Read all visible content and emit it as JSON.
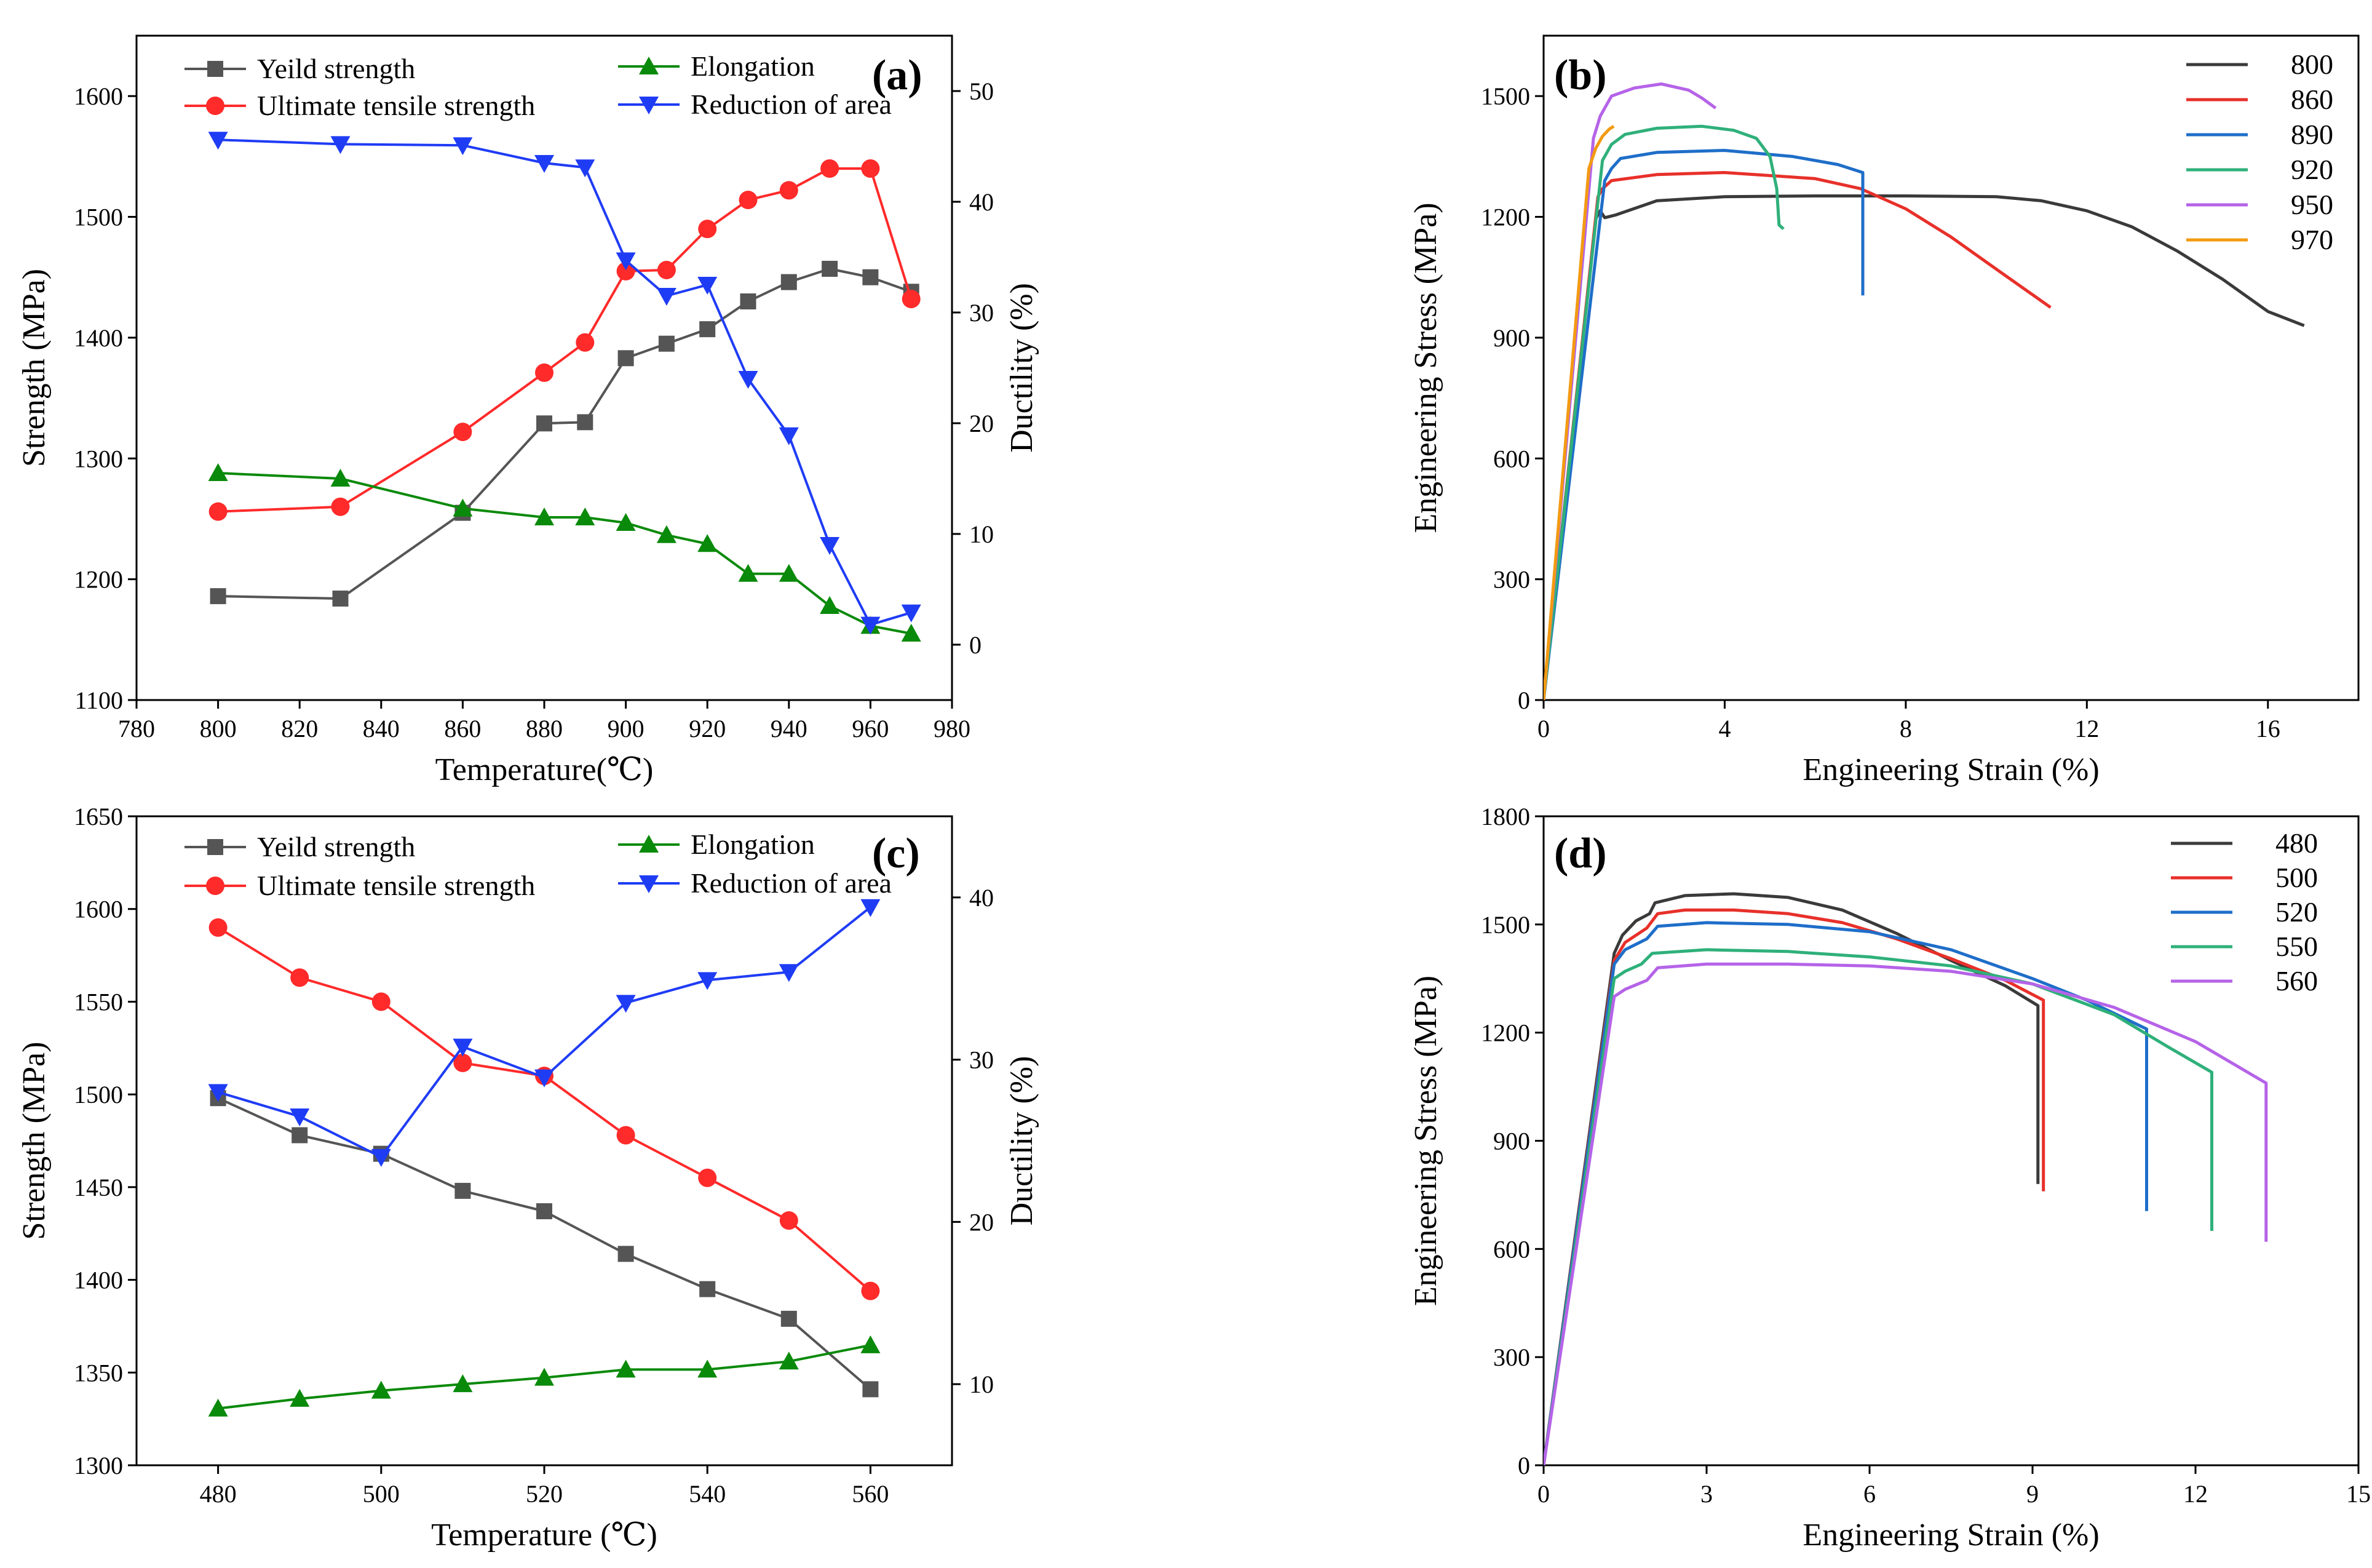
{
  "chart_data": [
    {
      "id": "a",
      "type": "line",
      "panel_label": "(a)",
      "xlabel": "Temperature(℃)",
      "ylabel": "Strength (MPa)",
      "y2label": "Ductility (%)",
      "xlim": [
        780,
        980
      ],
      "xticks": [
        780,
        800,
        820,
        840,
        860,
        880,
        900,
        920,
        940,
        960,
        980
      ],
      "ylim": [
        1100,
        1650
      ],
      "yticks": [
        1100,
        1200,
        1300,
        1400,
        1500,
        1600
      ],
      "y2lim": [
        -5,
        55
      ],
      "y2ticks": [
        0,
        10,
        20,
        30,
        40,
        50
      ],
      "series": [
        {
          "name": "Yeild strength",
          "axis": "left",
          "color": "#555555",
          "marker": "square",
          "x": [
            800,
            830,
            860,
            880,
            890,
            900,
            910,
            920,
            930,
            940,
            950,
            960,
            970
          ],
          "values": [
            1186,
            1184,
            1255,
            1329,
            1330,
            1383,
            1395,
            1407,
            1430,
            1446,
            1457,
            1450,
            1438
          ]
        },
        {
          "name": "Ultimate tensile strength",
          "axis": "left",
          "color": "#ff2a2a",
          "marker": "circle",
          "x": [
            800,
            830,
            860,
            880,
            890,
            900,
            910,
            920,
            930,
            940,
            950,
            960,
            970
          ],
          "values": [
            1256,
            1260,
            1322,
            1371,
            1396,
            1455,
            1456,
            1490,
            1514,
            1522,
            1540,
            1540,
            1432
          ]
        },
        {
          "name": "Elongation",
          "axis": "right",
          "color": "#0a8a0a",
          "marker": "triangle-up",
          "x": [
            800,
            830,
            860,
            880,
            890,
            900,
            910,
            920,
            930,
            940,
            950,
            960,
            970
          ],
          "values": [
            15.5,
            15.0,
            12.3,
            11.5,
            11.5,
            11.0,
            9.9,
            9.1,
            6.4,
            6.4,
            3.5,
            1.7,
            1.0
          ]
        },
        {
          "name": "Reduction of area",
          "axis": "right",
          "color": "#1f3cf5",
          "marker": "triangle-down",
          "x": [
            800,
            830,
            860,
            880,
            890,
            900,
            910,
            920,
            930,
            940,
            950,
            960,
            970
          ],
          "values": [
            45.6,
            45.2,
            45.1,
            43.5,
            43.1,
            34.7,
            31.5,
            32.5,
            24.0,
            18.9,
            9.0,
            1.8,
            2.9
          ]
        }
      ]
    },
    {
      "id": "b",
      "type": "line",
      "panel_label": "(b)",
      "xlabel": "Engineering Strain (%)",
      "ylabel": "Engineering Stress (MPa)",
      "xlim": [
        0,
        18
      ],
      "xticks": [
        0,
        4,
        8,
        12,
        16
      ],
      "ylim": [
        0,
        1650
      ],
      "yticks": [
        0,
        300,
        600,
        900,
        1200,
        1500
      ],
      "series": [
        {
          "name": "800",
          "color": "#3a3a3a",
          "x": [
            0,
            1.15,
            1.25,
            1.35,
            1.6,
            2.5,
            4,
            6,
            8,
            10,
            11,
            12,
            13,
            14,
            15,
            16,
            16.8
          ],
          "values": [
            0,
            1195,
            1215,
            1198,
            1205,
            1240,
            1250,
            1252,
            1252,
            1250,
            1240,
            1215,
            1175,
            1115,
            1045,
            965,
            930
          ]
        },
        {
          "name": "860",
          "color": "#e8302a",
          "x": [
            0,
            1.2,
            1.3,
            1.5,
            2.5,
            4,
            6,
            7,
            8,
            9,
            10,
            11.2
          ],
          "values": [
            0,
            1250,
            1270,
            1290,
            1305,
            1310,
            1295,
            1270,
            1220,
            1150,
            1070,
            975
          ]
        },
        {
          "name": "890",
          "color": "#1f6ec9",
          "x": [
            0,
            1.35,
            1.5,
            1.7,
            2.5,
            4,
            5.5,
            6.5,
            7.05,
            7.05,
            7.05
          ],
          "values": [
            0,
            1290,
            1320,
            1345,
            1360,
            1365,
            1350,
            1330,
            1310,
            1300,
            1005
          ]
        },
        {
          "name": "920",
          "color": "#2fb07a",
          "x": [
            0,
            1.3,
            1.5,
            1.8,
            2.5,
            3.5,
            4.2,
            4.7,
            5.0,
            5.15,
            5.2,
            5.3
          ],
          "values": [
            0,
            1340,
            1380,
            1405,
            1420,
            1425,
            1415,
            1395,
            1350,
            1270,
            1180,
            1170
          ]
        },
        {
          "name": "950",
          "color": "#b563e8",
          "x": [
            0,
            1.1,
            1.25,
            1.5,
            2.0,
            2.6,
            3.2,
            3.5,
            3.8
          ],
          "values": [
            0,
            1395,
            1450,
            1500,
            1520,
            1530,
            1515,
            1495,
            1470
          ]
        },
        {
          "name": "970",
          "color": "#f39a12",
          "x": [
            0,
            1.0,
            1.15,
            1.3,
            1.45,
            1.55
          ],
          "values": [
            0,
            1320,
            1370,
            1400,
            1418,
            1425
          ]
        }
      ]
    },
    {
      "id": "c",
      "type": "line",
      "panel_label": "(c)",
      "xlabel": "Temperature (℃)",
      "ylabel": "Strength (MPa)",
      "y2label": "Ductility (%)",
      "xlim": [
        470,
        570
      ],
      "xticks": [
        480,
        500,
        520,
        540,
        560
      ],
      "ylim": [
        1300,
        1650
      ],
      "yticks": [
        1300,
        1350,
        1400,
        1450,
        1500,
        1550,
        1600,
        1650
      ],
      "y2lim": [
        5,
        45
      ],
      "y2ticks": [
        10,
        20,
        30,
        40
      ],
      "series": [
        {
          "name": "Yeild strength",
          "axis": "left",
          "color": "#555555",
          "marker": "square",
          "x": [
            480,
            490,
            500,
            510,
            520,
            530,
            540,
            550,
            560
          ],
          "values": [
            1498,
            1478,
            1468,
            1448,
            1437,
            1414,
            1395,
            1379,
            1341
          ]
        },
        {
          "name": "Ultimate tensile strength",
          "axis": "left",
          "color": "#ff2a2a",
          "marker": "circle",
          "x": [
            480,
            490,
            500,
            510,
            520,
            530,
            540,
            550,
            560
          ],
          "values": [
            1590,
            1563,
            1550,
            1517,
            1510,
            1478,
            1455,
            1432,
            1394
          ]
        },
        {
          "name": "Elongation",
          "axis": "right",
          "color": "#0a8a0a",
          "marker": "triangle-up",
          "x": [
            480,
            490,
            500,
            510,
            520,
            530,
            540,
            550,
            560
          ],
          "values": [
            8.5,
            9.1,
            9.6,
            10.0,
            10.4,
            10.9,
            10.9,
            11.4,
            12.4
          ]
        },
        {
          "name": "Reduction of area",
          "axis": "right",
          "color": "#1f3cf5",
          "marker": "triangle-down",
          "x": [
            480,
            490,
            500,
            510,
            520,
            530,
            540,
            550,
            560
          ],
          "values": [
            28.0,
            26.5,
            24.0,
            30.8,
            28.9,
            33.5,
            34.9,
            35.4,
            39.4
          ]
        }
      ]
    },
    {
      "id": "d",
      "type": "line",
      "panel_label": "(d)",
      "xlabel": "Engineering Strain (%)",
      "ylabel": "Engineering Stress (MPa)",
      "xlim": [
        0,
        15
      ],
      "xticks": [
        0,
        3,
        6,
        9,
        12,
        15
      ],
      "ylim": [
        0,
        1800
      ],
      "yticks": [
        0,
        300,
        600,
        900,
        1200,
        1500,
        1800
      ],
      "series": [
        {
          "name": "480",
          "color": "#3a3a3a",
          "x": [
            0,
            1.3,
            1.45,
            1.7,
            1.95,
            2.05,
            2.6,
            3.5,
            4.5,
            5.5,
            6.5,
            7.5,
            8.5,
            9.1,
            9.1,
            9.1
          ],
          "values": [
            0,
            1420,
            1470,
            1510,
            1530,
            1560,
            1580,
            1585,
            1575,
            1540,
            1475,
            1400,
            1330,
            1275,
            1250,
            780
          ]
        },
        {
          "name": "500",
          "color": "#e8302a",
          "x": [
            0,
            1.3,
            1.5,
            1.9,
            2.1,
            2.6,
            3.5,
            4.5,
            5.5,
            6.5,
            7.5,
            8.5,
            9.2,
            9.2,
            9.2
          ],
          "values": [
            0,
            1400,
            1450,
            1490,
            1530,
            1540,
            1540,
            1530,
            1505,
            1460,
            1405,
            1345,
            1290,
            1270,
            760
          ]
        },
        {
          "name": "520",
          "color": "#1f6ec9",
          "x": [
            0,
            1.3,
            1.5,
            1.9,
            2.1,
            3.0,
            4.5,
            6.0,
            7.5,
            9.0,
            10.0,
            11.1,
            11.1,
            11.1
          ],
          "values": [
            0,
            1390,
            1430,
            1460,
            1495,
            1505,
            1500,
            1480,
            1430,
            1350,
            1290,
            1210,
            1180,
            705
          ]
        },
        {
          "name": "550",
          "color": "#2fb07a",
          "x": [
            0,
            1.3,
            1.5,
            1.8,
            2.0,
            3.0,
            4.5,
            6.0,
            7.5,
            9.0,
            10.5,
            11.5,
            12.3,
            12.3,
            12.3
          ],
          "values": [
            0,
            1350,
            1370,
            1390,
            1420,
            1430,
            1425,
            1410,
            1385,
            1335,
            1250,
            1160,
            1090,
            1080,
            650
          ]
        },
        {
          "name": "560",
          "color": "#b563e8",
          "x": [
            0,
            1.3,
            1.5,
            1.9,
            2.1,
            3.0,
            4.5,
            6.0,
            7.5,
            9.0,
            10.5,
            12.0,
            13.3,
            13.3,
            13.3
          ],
          "values": [
            0,
            1300,
            1320,
            1345,
            1380,
            1390,
            1390,
            1385,
            1370,
            1335,
            1270,
            1175,
            1060,
            1050,
            620
          ]
        }
      ]
    }
  ]
}
